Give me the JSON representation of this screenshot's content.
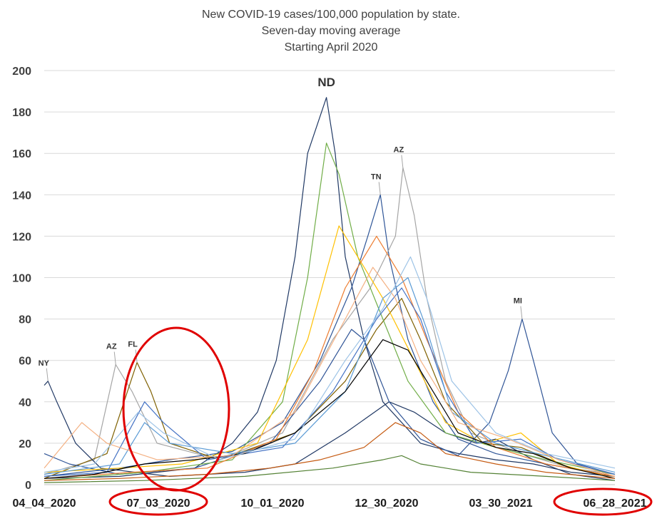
{
  "chart_data": {
    "type": "line",
    "title_lines": [
      "New COVID-19 cases/100,000 population by state.",
      "Seven-day moving average",
      "Starting April 2020"
    ],
    "xlabel": "",
    "ylabel": "",
    "ylim": [
      0,
      200
    ],
    "y_ticks": [
      "0",
      "20",
      "40",
      "60",
      "80",
      "100",
      "120",
      "140",
      "160",
      "180",
      "200"
    ],
    "x_ticks": [
      "04_04_2020",
      "07_03_2020",
      "10_01_2020",
      "12_30_2020",
      "03_30_2021",
      "06_28_2021"
    ],
    "x_range_days": [
      0,
      455
    ],
    "grid": "horizontal",
    "legend": "none",
    "annotations": [
      {
        "text": "NY",
        "x": 3,
        "y": 50
      },
      {
        "text": "AZ",
        "x": 57,
        "y": 58
      },
      {
        "text": "FL",
        "x": 74,
        "y": 59
      },
      {
        "text": "ND",
        "x": 225,
        "y": 187
      },
      {
        "text": "TN",
        "x": 268,
        "y": 140
      },
      {
        "text": "AZ",
        "x": 286,
        "y": 153
      },
      {
        "text": "MI",
        "x": 381,
        "y": 80
      }
    ],
    "highlighted_ticks": [
      "07_03_2020",
      "06_28_2021"
    ],
    "series": [
      {
        "label": "ND",
        "color": "#1f3864",
        "points": [
          [
            0,
            3
          ],
          [
            60,
            4
          ],
          [
            120,
            8
          ],
          [
            150,
            20
          ],
          [
            170,
            35
          ],
          [
            185,
            60
          ],
          [
            200,
            110
          ],
          [
            210,
            160
          ],
          [
            220,
            178
          ],
          [
            225,
            187
          ],
          [
            232,
            160
          ],
          [
            240,
            110
          ],
          [
            255,
            70
          ],
          [
            270,
            40
          ],
          [
            300,
            20
          ],
          [
            330,
            15
          ],
          [
            360,
            12
          ],
          [
            390,
            10
          ],
          [
            420,
            6
          ],
          [
            455,
            4
          ]
        ]
      },
      {
        "label": "TN",
        "color": "#2e5597",
        "points": [
          [
            0,
            4
          ],
          [
            60,
            8
          ],
          [
            100,
            12
          ],
          [
            150,
            16
          ],
          [
            190,
            30
          ],
          [
            220,
            60
          ],
          [
            245,
            95
          ],
          [
            258,
            120
          ],
          [
            268,
            140
          ],
          [
            275,
            110
          ],
          [
            290,
            70
          ],
          [
            310,
            40
          ],
          [
            330,
            22
          ],
          [
            360,
            15
          ],
          [
            400,
            10
          ],
          [
            455,
            4
          ]
        ]
      },
      {
        "label": "AZ",
        "color": "#a5a5a5",
        "points": [
          [
            0,
            5
          ],
          [
            40,
            12
          ],
          [
            57,
            58
          ],
          [
            70,
            45
          ],
          [
            90,
            20
          ],
          [
            140,
            12
          ],
          [
            190,
            25
          ],
          [
            230,
            70
          ],
          [
            260,
            95
          ],
          [
            280,
            120
          ],
          [
            286,
            153
          ],
          [
            295,
            130
          ],
          [
            305,
            90
          ],
          [
            320,
            50
          ],
          [
            340,
            25
          ],
          [
            380,
            15
          ],
          [
            420,
            8
          ],
          [
            455,
            5
          ]
        ]
      },
      {
        "label": "FL",
        "color": "#7f6000",
        "points": [
          [
            0,
            3
          ],
          [
            50,
            15
          ],
          [
            74,
            59
          ],
          [
            85,
            45
          ],
          [
            100,
            20
          ],
          [
            140,
            12
          ],
          [
            200,
            25
          ],
          [
            240,
            50
          ],
          [
            265,
            75
          ],
          [
            285,
            90
          ],
          [
            300,
            70
          ],
          [
            320,
            40
          ],
          [
            350,
            20
          ],
          [
            380,
            18
          ],
          [
            420,
            8
          ],
          [
            455,
            4
          ]
        ]
      },
      {
        "label": "NY",
        "color": "#203864",
        "points": [
          [
            0,
            48
          ],
          [
            3,
            50
          ],
          [
            10,
            40
          ],
          [
            25,
            20
          ],
          [
            45,
            8
          ],
          [
            100,
            4
          ],
          [
            160,
            6
          ],
          [
            200,
            10
          ],
          [
            240,
            25
          ],
          [
            275,
            40
          ],
          [
            295,
            35
          ],
          [
            320,
            25
          ],
          [
            345,
            20
          ],
          [
            360,
            22
          ],
          [
            390,
            12
          ],
          [
            420,
            5
          ],
          [
            455,
            2
          ]
        ]
      },
      {
        "label": "MI",
        "color": "#2f5496",
        "points": [
          [
            0,
            15
          ],
          [
            20,
            10
          ],
          [
            60,
            5
          ],
          [
            120,
            8
          ],
          [
            180,
            20
          ],
          [
            220,
            50
          ],
          [
            245,
            75
          ],
          [
            255,
            70
          ],
          [
            275,
            40
          ],
          [
            300,
            22
          ],
          [
            330,
            14
          ],
          [
            355,
            30
          ],
          [
            370,
            55
          ],
          [
            381,
            80
          ],
          [
            390,
            60
          ],
          [
            405,
            25
          ],
          [
            425,
            10
          ],
          [
            455,
            5
          ]
        ]
      },
      {
        "label": "s7",
        "color": "#70ad47",
        "points": [
          [
            0,
            2
          ],
          [
            80,
            6
          ],
          [
            150,
            12
          ],
          [
            190,
            40
          ],
          [
            210,
            100
          ],
          [
            225,
            165
          ],
          [
            235,
            150
          ],
          [
            250,
            110
          ],
          [
            270,
            80
          ],
          [
            290,
            50
          ],
          [
            320,
            25
          ],
          [
            360,
            18
          ],
          [
            400,
            12
          ],
          [
            455,
            5
          ]
        ]
      },
      {
        "label": "s8",
        "color": "#ffc000",
        "points": [
          [
            0,
            6
          ],
          [
            60,
            8
          ],
          [
            110,
            10
          ],
          [
            170,
            20
          ],
          [
            210,
            70
          ],
          [
            235,
            125
          ],
          [
            250,
            110
          ],
          [
            270,
            90
          ],
          [
            295,
            60
          ],
          [
            320,
            30
          ],
          [
            350,
            20
          ],
          [
            380,
            25
          ],
          [
            410,
            10
          ],
          [
            455,
            3
          ]
        ]
      },
      {
        "label": "s9",
        "color": "#ed7d31",
        "points": [
          [
            0,
            3
          ],
          [
            70,
            6
          ],
          [
            130,
            8
          ],
          [
            185,
            22
          ],
          [
            215,
            55
          ],
          [
            240,
            95
          ],
          [
            265,
            120
          ],
          [
            285,
            100
          ],
          [
            305,
            70
          ],
          [
            330,
            35
          ],
          [
            360,
            18
          ],
          [
            400,
            10
          ],
          [
            455,
            4
          ]
        ]
      },
      {
        "label": "s10",
        "color": "#4472c4",
        "points": [
          [
            0,
            4
          ],
          [
            50,
            6
          ],
          [
            80,
            40
          ],
          [
            95,
            30
          ],
          [
            130,
            12
          ],
          [
            190,
            18
          ],
          [
            230,
            45
          ],
          [
            265,
            80
          ],
          [
            285,
            95
          ],
          [
            300,
            80
          ],
          [
            320,
            45
          ],
          [
            345,
            20
          ],
          [
            380,
            22
          ],
          [
            410,
            12
          ],
          [
            455,
            5
          ]
        ]
      },
      {
        "label": "s11",
        "color": "#5b9bd5",
        "points": [
          [
            0,
            5
          ],
          [
            60,
            10
          ],
          [
            80,
            30
          ],
          [
            100,
            20
          ],
          [
            150,
            15
          ],
          [
            200,
            20
          ],
          [
            240,
            45
          ],
          [
            270,
            90
          ],
          [
            290,
            100
          ],
          [
            305,
            75
          ],
          [
            325,
            35
          ],
          [
            360,
            20
          ],
          [
            400,
            14
          ],
          [
            455,
            6
          ]
        ]
      },
      {
        "label": "s12",
        "color": "#000000",
        "points": [
          [
            0,
            3
          ],
          [
            40,
            5
          ],
          [
            80,
            10
          ],
          [
            120,
            12
          ],
          [
            160,
            15
          ],
          [
            200,
            25
          ],
          [
            240,
            45
          ],
          [
            270,
            70
          ],
          [
            290,
            65
          ],
          [
            310,
            45
          ],
          [
            330,
            25
          ],
          [
            360,
            18
          ],
          [
            390,
            15
          ],
          [
            420,
            8
          ],
          [
            455,
            3
          ]
        ]
      },
      {
        "label": "s13",
        "color": "#c55a11",
        "points": [
          [
            0,
            2
          ],
          [
            60,
            3
          ],
          [
            130,
            5
          ],
          [
            180,
            8
          ],
          [
            220,
            12
          ],
          [
            255,
            18
          ],
          [
            280,
            30
          ],
          [
            300,
            25
          ],
          [
            320,
            15
          ],
          [
            360,
            10
          ],
          [
            400,
            6
          ],
          [
            455,
            3
          ]
        ]
      },
      {
        "label": "s14",
        "color": "#548235",
        "points": [
          [
            0,
            1
          ],
          [
            80,
            2
          ],
          [
            160,
            4
          ],
          [
            230,
            8
          ],
          [
            270,
            12
          ],
          [
            285,
            14
          ],
          [
            300,
            10
          ],
          [
            340,
            6
          ],
          [
            400,
            4
          ],
          [
            455,
            2
          ]
        ]
      },
      {
        "label": "s15",
        "color": "#f4b183",
        "points": [
          [
            0,
            8
          ],
          [
            30,
            30
          ],
          [
            50,
            20
          ],
          [
            90,
            12
          ],
          [
            150,
            14
          ],
          [
            200,
            35
          ],
          [
            240,
            80
          ],
          [
            262,
            105
          ],
          [
            280,
            90
          ],
          [
            300,
            60
          ],
          [
            330,
            30
          ],
          [
            370,
            22
          ],
          [
            410,
            12
          ],
          [
            455,
            4
          ]
        ]
      },
      {
        "label": "s16",
        "color": "#9dc3e6",
        "points": [
          [
            0,
            6
          ],
          [
            40,
            10
          ],
          [
            75,
            35
          ],
          [
            95,
            25
          ],
          [
            140,
            12
          ],
          [
            200,
            22
          ],
          [
            240,
            60
          ],
          [
            270,
            85
          ],
          [
            292,
            110
          ],
          [
            305,
            90
          ],
          [
            325,
            50
          ],
          [
            360,
            25
          ],
          [
            400,
            15
          ],
          [
            455,
            8
          ]
        ]
      }
    ]
  }
}
